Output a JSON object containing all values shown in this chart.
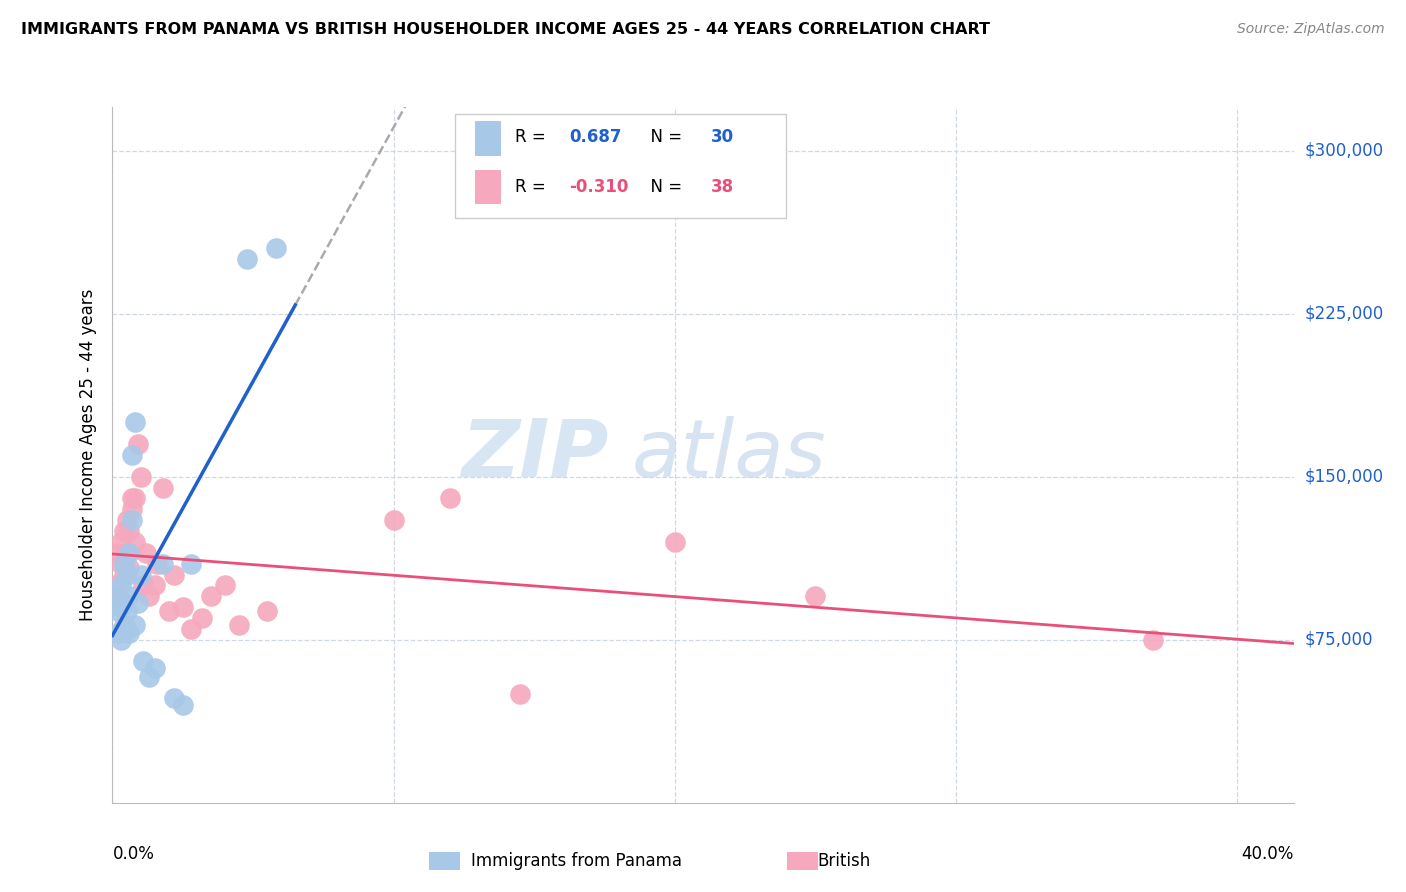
{
  "title": "IMMIGRANTS FROM PANAMA VS BRITISH HOUSEHOLDER INCOME AGES 25 - 44 YEARS CORRELATION CHART",
  "source": "Source: ZipAtlas.com",
  "ylabel": "Householder Income Ages 25 - 44 years",
  "ytick_labels": [
    "$75,000",
    "$150,000",
    "$225,000",
    "$300,000"
  ],
  "ytick_values": [
    75000,
    150000,
    225000,
    300000
  ],
  "ymin": 0,
  "ymax": 320000,
  "xmin": 0.0,
  "xmax": 0.42,
  "r_panama": 0.687,
  "n_panama": 30,
  "r_british": -0.31,
  "n_british": 38,
  "color_panama": "#a8c8e8",
  "color_british": "#f5a8be",
  "line_panama": "#2060cc",
  "line_british": "#e8507a",
  "watermark_zip": "ZIP",
  "watermark_atlas": "atlas",
  "background_color": "#ffffff",
  "grid_color": "#d0d8e8",
  "panama_x": [
    0.001,
    0.002,
    0.002,
    0.003,
    0.003,
    0.003,
    0.004,
    0.004,
    0.004,
    0.005,
    0.005,
    0.005,
    0.006,
    0.006,
    0.006,
    0.007,
    0.007,
    0.008,
    0.008,
    0.009,
    0.01,
    0.011,
    0.013,
    0.015,
    0.018,
    0.022,
    0.025,
    0.028,
    0.048,
    0.058
  ],
  "panama_y": [
    95000,
    88000,
    78000,
    100000,
    90000,
    75000,
    82000,
    110000,
    92000,
    80000,
    105000,
    88000,
    115000,
    95000,
    78000,
    130000,
    160000,
    175000,
    82000,
    92000,
    105000,
    65000,
    58000,
    62000,
    110000,
    48000,
    45000,
    110000,
    250000,
    255000
  ],
  "british_x": [
    0.001,
    0.002,
    0.002,
    0.003,
    0.003,
    0.004,
    0.004,
    0.005,
    0.005,
    0.006,
    0.006,
    0.007,
    0.007,
    0.008,
    0.008,
    0.009,
    0.01,
    0.011,
    0.012,
    0.013,
    0.015,
    0.016,
    0.018,
    0.02,
    0.022,
    0.025,
    0.028,
    0.032,
    0.035,
    0.04,
    0.045,
    0.055,
    0.1,
    0.12,
    0.145,
    0.2,
    0.25,
    0.37
  ],
  "british_y": [
    100000,
    115000,
    95000,
    110000,
    120000,
    125000,
    105000,
    130000,
    115000,
    125000,
    108000,
    140000,
    135000,
    120000,
    140000,
    165000,
    150000,
    100000,
    115000,
    95000,
    100000,
    110000,
    145000,
    88000,
    105000,
    90000,
    80000,
    85000,
    95000,
    100000,
    82000,
    88000,
    130000,
    140000,
    50000,
    120000,
    95000,
    75000
  ]
}
